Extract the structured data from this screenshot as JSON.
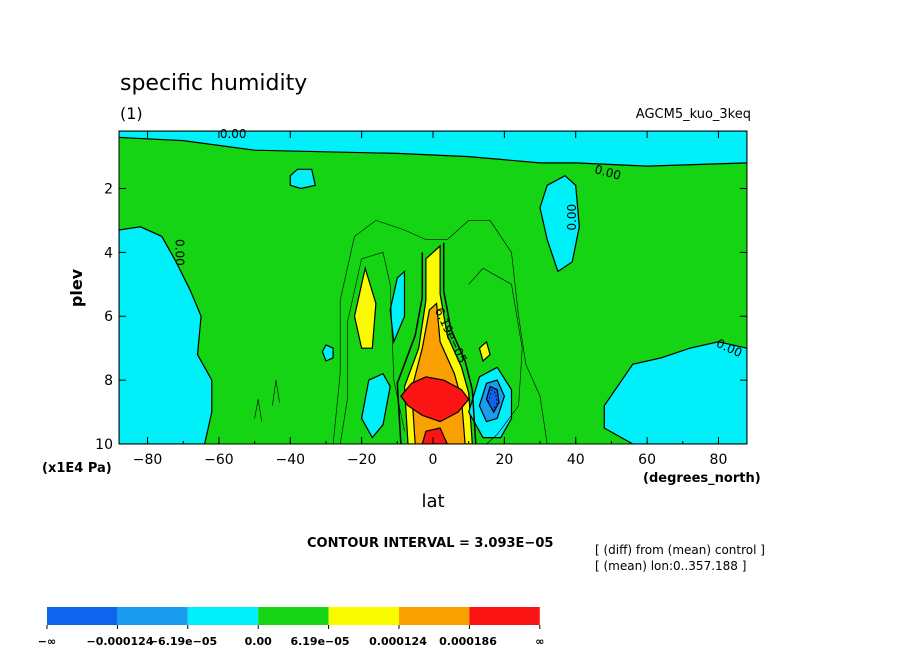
{
  "chart_data": {
    "type": "contour",
    "title": "specific humidity",
    "subtitle": "(1)",
    "model_label": "AGCM5_kuo_3keq",
    "xlabel": "lat",
    "x_units": "(degrees_north)",
    "ylabel": "plev",
    "y_units": "(x1E4 Pa)",
    "xlim": [
      -88,
      88
    ],
    "ylim": [
      0.2,
      10
    ],
    "y_inverted": true,
    "x_ticks": [
      -80,
      -60,
      -40,
      -20,
      0,
      20,
      40,
      60,
      80
    ],
    "x_tick_labels": [
      "−80",
      "−60",
      "−40",
      "−20",
      "0",
      "20",
      "40",
      "60",
      "80"
    ],
    "y_ticks": [
      2,
      4,
      6,
      8,
      10
    ],
    "y_tick_labels": [
      "2",
      "4",
      "6",
      "8",
      "10"
    ],
    "contour_interval_text": "CONTOUR INTERVAL = 3.093E−05",
    "notes": [
      "[ (diff) from (mean) control ]",
      "[ (mean) lon:0..357.188 ]"
    ],
    "contour_labels": [
      "0.00",
      "0.00",
      "0.00",
      "0.00",
      "0.00",
      "6.19e−05"
    ],
    "levels": [
      -0.000186,
      -0.000124,
      -6.19e-05,
      0.0,
      6.19e-05,
      0.000124,
      0.000186
    ],
    "legend": {
      "colors": [
        "#0f64f0",
        "#1a9cf0",
        "#00f0fa",
        "#14d414",
        "#fafa00",
        "#faa000",
        "#fa1414"
      ],
      "labels": [
        "−∞",
        "−0.000124",
        "−6.19e−05",
        "0.00",
        "6.19e−05",
        "0.000124",
        "0.000186",
        "∞"
      ]
    },
    "regions": [
      {
        "level": "pos1",
        "color": "#fafa00",
        "points": [
          [
            -7,
            10
          ],
          [
            -8,
            8.2
          ],
          [
            -4,
            7.0
          ],
          [
            -2,
            5.5
          ],
          [
            -2,
            4.2
          ],
          [
            2,
            3.8
          ],
          [
            2,
            5.3
          ],
          [
            4,
            6.6
          ],
          [
            8,
            7.6
          ],
          [
            10,
            8.4
          ],
          [
            11,
            10
          ]
        ]
      },
      {
        "level": "pos2",
        "color": "#faa000",
        "points": [
          [
            -5,
            10
          ],
          [
            -6,
            8.3
          ],
          [
            -3,
            7.0
          ],
          [
            -1,
            5.8
          ],
          [
            1,
            5.6
          ],
          [
            2,
            6.8
          ],
          [
            6,
            7.8
          ],
          [
            8,
            8.6
          ],
          [
            9,
            10
          ]
        ]
      },
      {
        "level": "pos3",
        "color": "#fa1414",
        "points": [
          [
            -9,
            8.5
          ],
          [
            -6,
            8.1
          ],
          [
            -2,
            7.9
          ],
          [
            3,
            8.0
          ],
          [
            8,
            8.3
          ],
          [
            10,
            8.6
          ],
          [
            7,
            9.0
          ],
          [
            2,
            9.3
          ],
          [
            -3,
            9.1
          ],
          [
            -7,
            8.8
          ]
        ]
      },
      {
        "level": "pos3",
        "color": "#fa1414",
        "points": [
          [
            -3,
            10
          ],
          [
            -2,
            9.6
          ],
          [
            2,
            9.5
          ],
          [
            4,
            10
          ]
        ]
      },
      {
        "level": "pos1",
        "color": "#fafa00",
        "points": [
          [
            -22,
            6.0
          ],
          [
            -19,
            4.5
          ],
          [
            -16,
            5.6
          ],
          [
            -17,
            7.0
          ],
          [
            -20,
            7.0
          ]
        ]
      },
      {
        "level": "pos1",
        "color": "#fafa00",
        "points": [
          [
            13,
            7.0
          ],
          [
            15,
            6.8
          ],
          [
            16,
            7.2
          ],
          [
            14,
            7.4
          ]
        ]
      },
      {
        "level": "neg1",
        "color": "#00f0fa",
        "points": [
          [
            -88,
            3.3
          ],
          [
            -82,
            3.2
          ],
          [
            -76,
            3.5
          ],
          [
            -72,
            4.3
          ],
          [
            -68,
            5.2
          ],
          [
            -65,
            6.0
          ],
          [
            -66,
            7.2
          ],
          [
            -62,
            8.0
          ],
          [
            -62,
            9.0
          ],
          [
            -64,
            10
          ],
          [
            -88,
            10
          ]
        ]
      },
      {
        "level": "neg1",
        "color": "#00f0fa",
        "points": [
          [
            -88,
            0.2
          ],
          [
            88,
            0.2
          ],
          [
            88,
            1.2
          ],
          [
            60,
            1.3
          ],
          [
            40,
            1.2
          ],
          [
            30,
            1.2
          ],
          [
            10,
            1.0
          ],
          [
            -10,
            0.9
          ],
          [
            -30,
            0.85
          ],
          [
            -50,
            0.8
          ],
          [
            -70,
            0.5
          ],
          [
            -88,
            0.4
          ]
        ]
      },
      {
        "level": "neg1",
        "color": "#00f0fa",
        "points": [
          [
            -40,
            1.6
          ],
          [
            -38,
            1.4
          ],
          [
            -34,
            1.4
          ],
          [
            -33,
            1.9
          ],
          [
            -37,
            2.0
          ],
          [
            -40,
            1.9
          ]
        ]
      },
      {
        "level": "neg1",
        "color": "#00f0fa",
        "points": [
          [
            30,
            2.6
          ],
          [
            32,
            1.9
          ],
          [
            37,
            1.6
          ],
          [
            40,
            1.9
          ],
          [
            41,
            3.2
          ],
          [
            39,
            4.3
          ],
          [
            35,
            4.6
          ],
          [
            32,
            3.6
          ]
        ]
      },
      {
        "level": "neg1",
        "color": "#00f0fa",
        "points": [
          [
            48,
            8.8
          ],
          [
            56,
            7.5
          ],
          [
            64,
            7.3
          ],
          [
            72,
            7.0
          ],
          [
            80,
            6.8
          ],
          [
            88,
            7.0
          ],
          [
            88,
            10
          ],
          [
            56,
            10
          ],
          [
            48,
            9.5
          ]
        ]
      },
      {
        "level": "neg1",
        "color": "#00f0fa",
        "points": [
          [
            -12,
            5.8
          ],
          [
            -10,
            4.8
          ],
          [
            -8,
            4.6
          ],
          [
            -8,
            6.0
          ],
          [
            -11,
            6.8
          ]
        ]
      },
      {
        "level": "neg1",
        "color": "#00f0fa",
        "points": [
          [
            -31,
            7.1
          ],
          [
            -30,
            6.9
          ],
          [
            -28,
            7.0
          ],
          [
            -28,
            7.3
          ],
          [
            -30,
            7.4
          ]
        ]
      },
      {
        "level": "neg1",
        "color": "#00f0fa",
        "points": [
          [
            -20,
            9.2
          ],
          [
            -18,
            8.0
          ],
          [
            -14,
            7.8
          ],
          [
            -12,
            8.2
          ],
          [
            -14,
            9.4
          ],
          [
            -17,
            9.8
          ]
        ]
      },
      {
        "level": "neg1",
        "color": "#00f0fa",
        "points": [
          [
            10,
            9.0
          ],
          [
            13,
            7.9
          ],
          [
            18,
            7.6
          ],
          [
            22,
            8.3
          ],
          [
            22,
            9.2
          ],
          [
            19,
            9.8
          ],
          [
            14,
            9.8
          ]
        ]
      },
      {
        "level": "neg2",
        "color": "#1a9cf0",
        "points": [
          [
            13,
            8.8
          ],
          [
            15,
            8.1
          ],
          [
            18,
            8.0
          ],
          [
            20,
            8.5
          ],
          [
            18,
            9.2
          ],
          [
            15,
            9.3
          ]
        ]
      },
      {
        "level": "neg3",
        "color": "#0f64f0",
        "points": [
          [
            15,
            8.6
          ],
          [
            16,
            8.2
          ],
          [
            18,
            8.3
          ],
          [
            18.5,
            8.7
          ],
          [
            17,
            9.0
          ]
        ]
      }
    ],
    "thin_contours": [
      [
        [
          -28,
          10
        ],
        [
          -26,
          7.8
        ],
        [
          -26,
          5.5
        ],
        [
          -22,
          3.5
        ],
        [
          -16,
          3.0
        ],
        [
          -8,
          3.3
        ],
        [
          -2,
          3.6
        ],
        [
          4,
          3.6
        ],
        [
          10,
          3.0
        ],
        [
          16,
          3.0
        ],
        [
          22,
          4.0
        ],
        [
          24,
          6.0
        ],
        [
          26,
          7.5
        ],
        [
          30,
          8.5
        ],
        [
          32,
          10
        ]
      ],
      [
        [
          -26,
          10
        ],
        [
          -24,
          8.6
        ],
        [
          -24,
          6.2
        ],
        [
          -20,
          4.2
        ],
        [
          -14,
          4.0
        ],
        [
          -12,
          5.0
        ],
        [
          -11,
          8.0
        ],
        [
          -8,
          9.6
        ]
      ],
      [
        [
          15,
          10
        ],
        [
          18,
          9.7
        ],
        [
          24,
          8.8
        ],
        [
          25,
          7.0
        ],
        [
          22,
          5.0
        ],
        [
          14,
          4.5
        ],
        [
          10,
          5.0
        ]
      ],
      [
        [
          -45,
          8.8
        ],
        [
          -44,
          8.0
        ],
        [
          -43,
          8.7
        ]
      ],
      [
        [
          -50,
          9.2
        ],
        [
          -49,
          8.6
        ],
        [
          -48,
          9.3
        ]
      ]
    ],
    "thick_contours": [
      [
        [
          -9,
          10
        ],
        [
          -10,
          8.1
        ],
        [
          -5,
          6.6
        ],
        [
          -3,
          5.4
        ],
        [
          -3,
          4.0
        ]
      ],
      [
        [
          3,
          3.7
        ],
        [
          3,
          5.2
        ],
        [
          5,
          6.4
        ],
        [
          9,
          7.4
        ],
        [
          11,
          8.3
        ],
        [
          12,
          10
        ]
      ]
    ]
  }
}
